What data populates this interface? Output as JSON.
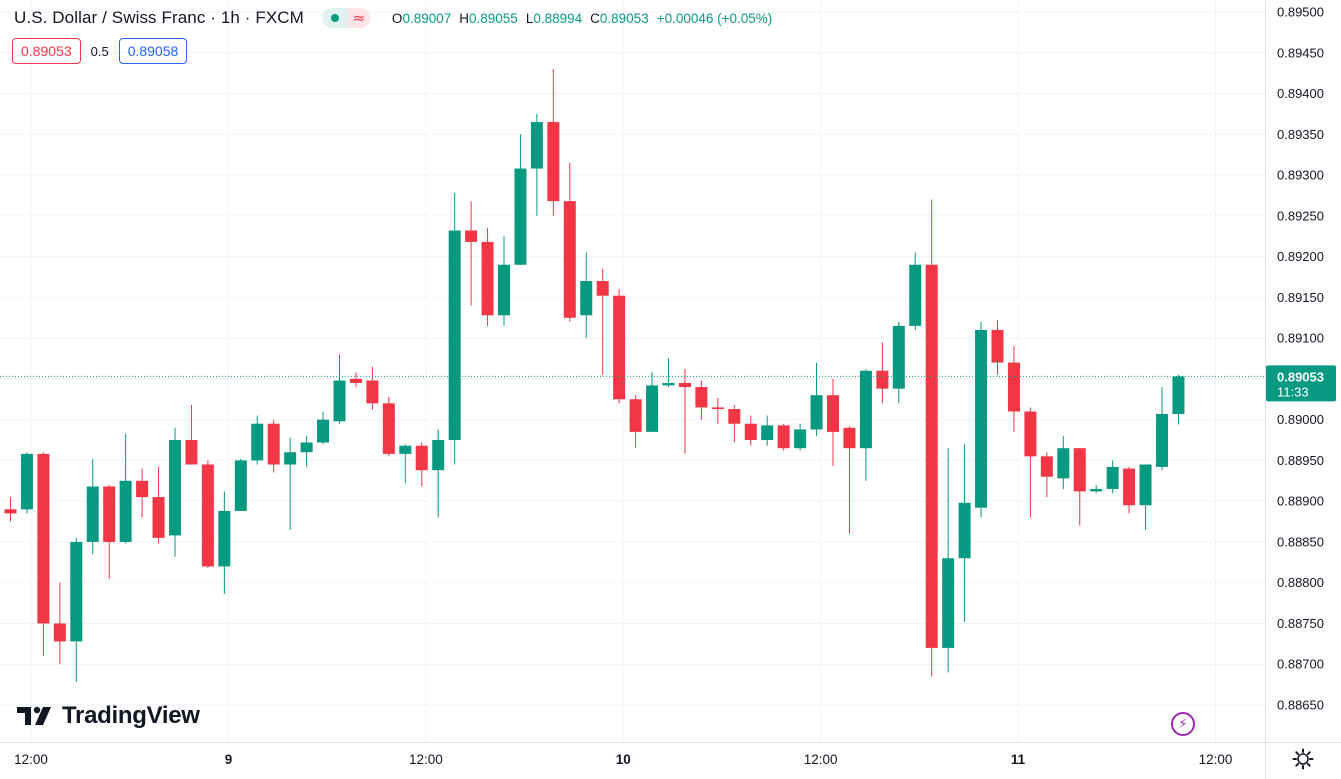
{
  "header": {
    "title": "U.S. Dollar / Swiss Franc · 1h · FXCM",
    "ohlc": {
      "o_label": "O",
      "o": "0.89007",
      "h_label": "H",
      "h": "0.89055",
      "l_label": "L",
      "l": "0.88994",
      "c_label": "C",
      "c": "0.89053",
      "change": "+0.00046 (+0.05%)"
    }
  },
  "quote": {
    "sell": "0.89053",
    "spread": "0.5",
    "buy": "0.89058"
  },
  "branding": {
    "logo_text": "TradingView"
  },
  "colors": {
    "up": "#089981",
    "down": "#f23645",
    "buy": "#2962ff",
    "grid": "#f0f3fa",
    "axis_text": "#131722"
  },
  "icons": {
    "status": "dot-icon",
    "replay": "approx-icon",
    "alert": "lightning-icon",
    "settings": "gear-icon"
  },
  "chart_data": {
    "type": "candlestick",
    "grid": true,
    "ylim": [
      0.8862,
      0.89505
    ],
    "y_ticks": [
      "0.88650",
      "0.88700",
      "0.88750",
      "0.88800",
      "0.88850",
      "0.88900",
      "0.88950",
      "0.89000",
      "0.89050",
      "0.89100",
      "0.89150",
      "0.89200",
      "0.89250",
      "0.89300",
      "0.89350",
      "0.89400",
      "0.89450",
      "0.89500"
    ],
    "x_ticks": [
      "12:00",
      "9",
      "12:00",
      "10",
      "12:00",
      "11",
      "12:00"
    ],
    "last_price": "0.89053",
    "countdown": "11:33",
    "candles": [
      {
        "o": 0.8889,
        "h": 0.88905,
        "l": 0.88875,
        "c": 0.88885
      },
      {
        "o": 0.8889,
        "h": 0.8896,
        "l": 0.88885,
        "c": 0.88958
      },
      {
        "o": 0.88958,
        "h": 0.8896,
        "l": 0.8871,
        "c": 0.8875
      },
      {
        "o": 0.8875,
        "h": 0.888,
        "l": 0.887,
        "c": 0.88728
      },
      {
        "o": 0.88728,
        "h": 0.88855,
        "l": 0.88678,
        "c": 0.8885
      },
      {
        "o": 0.8885,
        "h": 0.88952,
        "l": 0.88835,
        "c": 0.88918
      },
      {
        "o": 0.88918,
        "h": 0.8892,
        "l": 0.88805,
        "c": 0.8885
      },
      {
        "o": 0.8885,
        "h": 0.88983,
        "l": 0.88848,
        "c": 0.88925
      },
      {
        "o": 0.88925,
        "h": 0.8894,
        "l": 0.8888,
        "c": 0.88905
      },
      {
        "o": 0.88905,
        "h": 0.88942,
        "l": 0.88848,
        "c": 0.88855
      },
      {
        "o": 0.88858,
        "h": 0.8899,
        "l": 0.88832,
        "c": 0.88975
      },
      {
        "o": 0.88975,
        "h": 0.89018,
        "l": 0.88948,
        "c": 0.88945
      },
      {
        "o": 0.88945,
        "h": 0.8895,
        "l": 0.88818,
        "c": 0.8882
      },
      {
        "o": 0.8882,
        "h": 0.88912,
        "l": 0.88786,
        "c": 0.88888
      },
      {
        "o": 0.88888,
        "h": 0.88952,
        "l": 0.88888,
        "c": 0.8895
      },
      {
        "o": 0.8895,
        "h": 0.89005,
        "l": 0.88945,
        "c": 0.88995
      },
      {
        "o": 0.88995,
        "h": 0.89,
        "l": 0.88935,
        "c": 0.88945
      },
      {
        "o": 0.88945,
        "h": 0.88978,
        "l": 0.88865,
        "c": 0.8896
      },
      {
        "o": 0.8896,
        "h": 0.8898,
        "l": 0.88942,
        "c": 0.88972
      },
      {
        "o": 0.88972,
        "h": 0.8901,
        "l": 0.8897,
        "c": 0.89
      },
      {
        "o": 0.88998,
        "h": 0.8908,
        "l": 0.88995,
        "c": 0.89048
      },
      {
        "o": 0.8905,
        "h": 0.89058,
        "l": 0.8904,
        "c": 0.89045
      },
      {
        "o": 0.89048,
        "h": 0.89065,
        "l": 0.89012,
        "c": 0.8902
      },
      {
        "o": 0.8902,
        "h": 0.89028,
        "l": 0.88955,
        "c": 0.88958
      },
      {
        "o": 0.88958,
        "h": 0.8897,
        "l": 0.88922,
        "c": 0.88968
      },
      {
        "o": 0.88968,
        "h": 0.88972,
        "l": 0.88918,
        "c": 0.88938
      },
      {
        "o": 0.88938,
        "h": 0.88988,
        "l": 0.8888,
        "c": 0.88975
      },
      {
        "o": 0.88975,
        "h": 0.89278,
        "l": 0.88945,
        "c": 0.89232
      },
      {
        "o": 0.89232,
        "h": 0.89268,
        "l": 0.8914,
        "c": 0.89218
      },
      {
        "o": 0.89218,
        "h": 0.89235,
        "l": 0.89115,
        "c": 0.89128
      },
      {
        "o": 0.89128,
        "h": 0.89225,
        "l": 0.89115,
        "c": 0.8919
      },
      {
        "o": 0.8919,
        "h": 0.8935,
        "l": 0.8919,
        "c": 0.89308
      },
      {
        "o": 0.89308,
        "h": 0.89375,
        "l": 0.8925,
        "c": 0.89365
      },
      {
        "o": 0.89365,
        "h": 0.8943,
        "l": 0.8925,
        "c": 0.89268
      },
      {
        "o": 0.89268,
        "h": 0.89315,
        "l": 0.8912,
        "c": 0.89125
      },
      {
        "o": 0.89128,
        "h": 0.89205,
        "l": 0.891,
        "c": 0.8917
      },
      {
        "o": 0.8917,
        "h": 0.89185,
        "l": 0.89055,
        "c": 0.89152
      },
      {
        "o": 0.89152,
        "h": 0.8916,
        "l": 0.8902,
        "c": 0.89025
      },
      {
        "o": 0.89025,
        "h": 0.8903,
        "l": 0.88965,
        "c": 0.88985
      },
      {
        "o": 0.88985,
        "h": 0.89058,
        "l": 0.88985,
        "c": 0.89042
      },
      {
        "o": 0.89042,
        "h": 0.89075,
        "l": 0.8904,
        "c": 0.89045
      },
      {
        "o": 0.89045,
        "h": 0.89062,
        "l": 0.88958,
        "c": 0.8904
      },
      {
        "o": 0.8904,
        "h": 0.89048,
        "l": 0.89,
        "c": 0.89015
      },
      {
        "o": 0.89015,
        "h": 0.89027,
        "l": 0.88995,
        "c": 0.89013
      },
      {
        "o": 0.89013,
        "h": 0.89018,
        "l": 0.88972,
        "c": 0.88995
      },
      {
        "o": 0.88995,
        "h": 0.89005,
        "l": 0.88968,
        "c": 0.88975
      },
      {
        "o": 0.88975,
        "h": 0.89005,
        "l": 0.88968,
        "c": 0.88993
      },
      {
        "o": 0.88993,
        "h": 0.88995,
        "l": 0.88962,
        "c": 0.88965
      },
      {
        "o": 0.88965,
        "h": 0.88995,
        "l": 0.88962,
        "c": 0.88988
      },
      {
        "o": 0.88988,
        "h": 0.8907,
        "l": 0.8898,
        "c": 0.8903
      },
      {
        "o": 0.8903,
        "h": 0.8905,
        "l": 0.88943,
        "c": 0.88985
      },
      {
        "o": 0.8899,
        "h": 0.88992,
        "l": 0.8886,
        "c": 0.88965
      },
      {
        "o": 0.88965,
        "h": 0.89062,
        "l": 0.88925,
        "c": 0.8906
      },
      {
        "o": 0.8906,
        "h": 0.89095,
        "l": 0.8902,
        "c": 0.89038
      },
      {
        "o": 0.89038,
        "h": 0.8912,
        "l": 0.8902,
        "c": 0.89115
      },
      {
        "o": 0.89115,
        "h": 0.89205,
        "l": 0.8911,
        "c": 0.8919
      },
      {
        "o": 0.8919,
        "h": 0.8927,
        "l": 0.88685,
        "c": 0.8872
      },
      {
        "o": 0.8872,
        "h": 0.88965,
        "l": 0.8869,
        "c": 0.8883
      },
      {
        "o": 0.8883,
        "h": 0.8897,
        "l": 0.88752,
        "c": 0.88898
      },
      {
        "o": 0.88892,
        "h": 0.8912,
        "l": 0.8888,
        "c": 0.8911
      },
      {
        "o": 0.8911,
        "h": 0.89122,
        "l": 0.89055,
        "c": 0.8907
      },
      {
        "o": 0.8907,
        "h": 0.8909,
        "l": 0.88985,
        "c": 0.8901
      },
      {
        "o": 0.8901,
        "h": 0.89015,
        "l": 0.8888,
        "c": 0.88955
      },
      {
        "o": 0.88955,
        "h": 0.8896,
        "l": 0.88905,
        "c": 0.8893
      },
      {
        "o": 0.88928,
        "h": 0.8898,
        "l": 0.88915,
        "c": 0.88965
      },
      {
        "o": 0.88965,
        "h": 0.88965,
        "l": 0.8887,
        "c": 0.88912
      },
      {
        "o": 0.88912,
        "h": 0.8892,
        "l": 0.8891,
        "c": 0.88915
      },
      {
        "o": 0.88915,
        "h": 0.8895,
        "l": 0.8891,
        "c": 0.88942
      },
      {
        "o": 0.8894,
        "h": 0.88942,
        "l": 0.88885,
        "c": 0.88895
      },
      {
        "o": 0.88895,
        "h": 0.88945,
        "l": 0.88865,
        "c": 0.88945
      },
      {
        "o": 0.88942,
        "h": 0.8904,
        "l": 0.88938,
        "c": 0.89007
      },
      {
        "o": 0.89007,
        "h": 0.89055,
        "l": 0.88994,
        "c": 0.89053
      }
    ]
  }
}
